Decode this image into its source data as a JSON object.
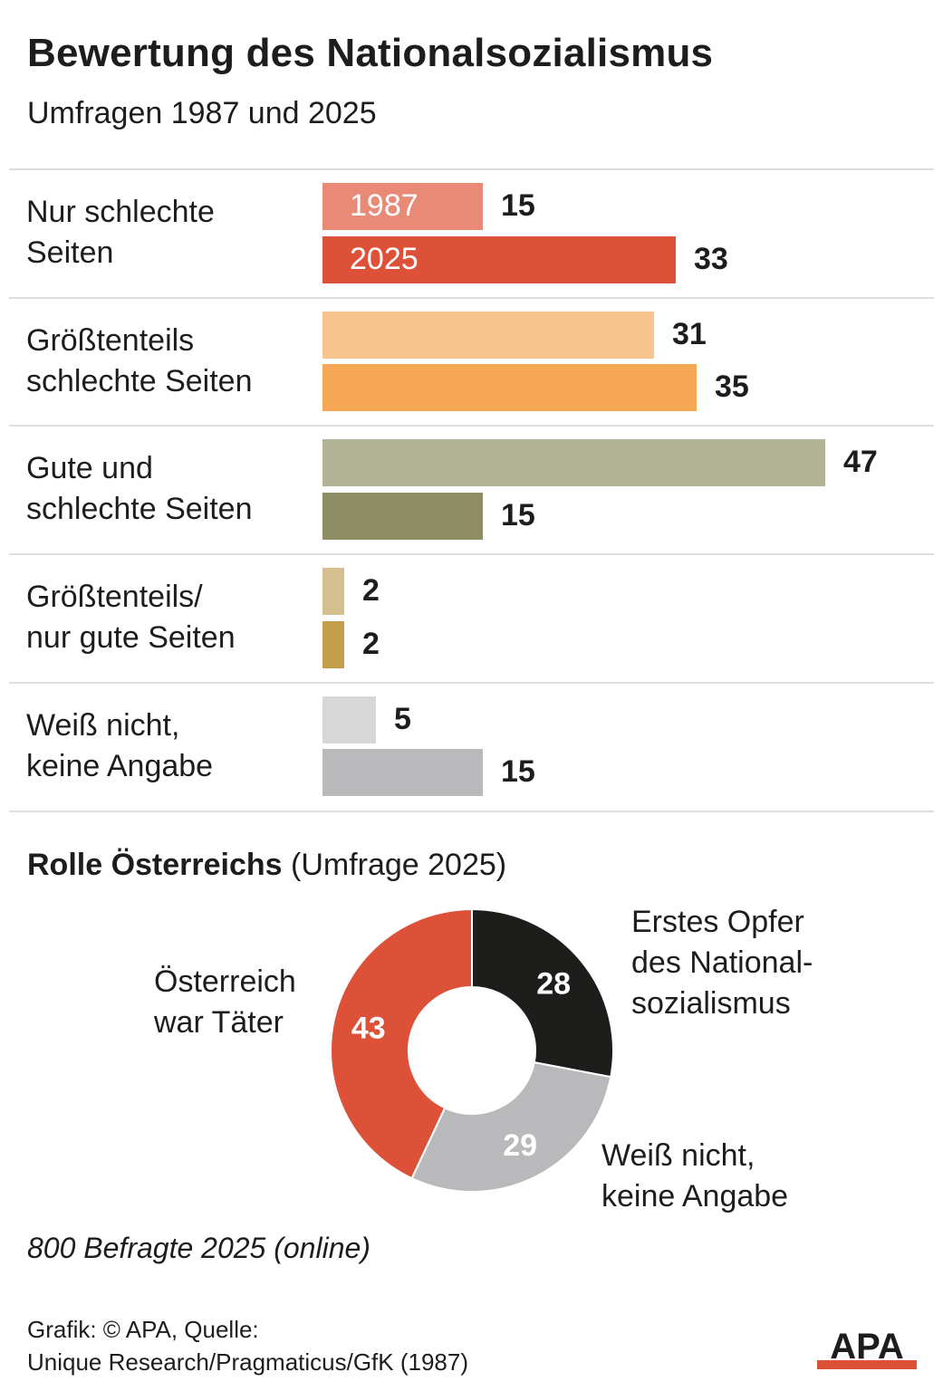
{
  "header": {
    "title": "Bewertung des Nationalsozialismus",
    "subtitle": "Umfragen 1987 und 2025"
  },
  "chart_data": [
    {
      "type": "bar",
      "orientation": "horizontal",
      "categories": [
        "Nur schlechte Seiten",
        "Größtenteils schlechte Seiten",
        "Gute und schlechte Seiten",
        "Größtenteils/ nur gute Seiten",
        "Weiß nicht, keine Angabe"
      ],
      "category_lines": [
        [
          "Nur schlechte",
          "Seiten"
        ],
        [
          "Größtenteils",
          "schlechte Seiten"
        ],
        [
          "Gute und",
          "schlechte Seiten"
        ],
        [
          "Größtenteils/",
          "nur gute Seiten"
        ],
        [
          "Weiß nicht,",
          "keine Angabe"
        ]
      ],
      "series": [
        {
          "name": "1987",
          "values": [
            15,
            31,
            47,
            2,
            5
          ]
        },
        {
          "name": "2025",
          "values": [
            33,
            35,
            15,
            2,
            15
          ]
        }
      ],
      "colors": [
        [
          "#e88a76",
          "#dc5138"
        ],
        [
          "#f7c48d",
          "#f5a756"
        ],
        [
          "#b2b394",
          "#8d8e64"
        ],
        [
          "#d6bf8e",
          "#c49e4d"
        ],
        [
          "#d7d7d7",
          "#b9b9bb"
        ]
      ],
      "xlim": [
        0,
        47
      ],
      "grid": false,
      "legend": "inline on first category bars"
    },
    {
      "type": "pie",
      "variant": "donut",
      "title_bold": "Rolle Österreichs",
      "title_rest": " (Umfrage 2025)",
      "slices": [
        {
          "value": 28,
          "label": "28",
          "name_lines": [
            "Erstes Opfer",
            "des National-",
            "sozialismus"
          ],
          "color": "#1d1d1b"
        },
        {
          "value": 29,
          "label": "29",
          "name_lines": [
            "Weiß nicht,",
            "keine Angabe"
          ],
          "color": "#b9b9bb"
        },
        {
          "value": 43,
          "label": "43",
          "name_lines": [
            "Österreich",
            "war Täter"
          ],
          "color": "#dc5138"
        }
      ]
    }
  ],
  "footer": {
    "note": "800 Befragte 2025 (online)",
    "credit_line1": "Grafik: © APA, Quelle:",
    "credit_line2": "Unique Research/Pragmaticus/GfK (1987)",
    "logo_text": "APA"
  }
}
